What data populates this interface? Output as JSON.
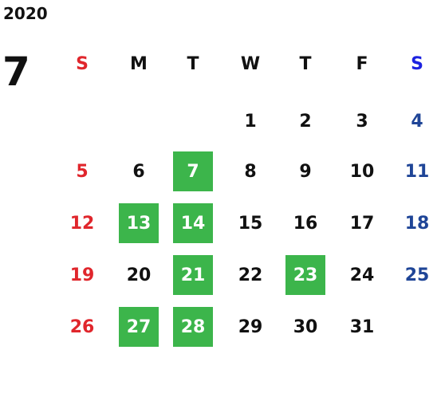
{
  "year": "2020",
  "month": "7",
  "weekdays": [
    "S",
    "M",
    "T",
    "W",
    "T",
    "F",
    "S"
  ],
  "weeks": [
    [
      null,
      null,
      null,
      {
        "day": 1,
        "highlighted": false
      },
      {
        "day": 2,
        "highlighted": false
      },
      {
        "day": 3,
        "highlighted": false
      },
      {
        "day": 4,
        "highlighted": false
      }
    ],
    [
      {
        "day": 5,
        "highlighted": false
      },
      {
        "day": 6,
        "highlighted": false
      },
      {
        "day": 7,
        "highlighted": true
      },
      {
        "day": 8,
        "highlighted": false
      },
      {
        "day": 9,
        "highlighted": false
      },
      {
        "day": 10,
        "highlighted": false
      },
      {
        "day": 11,
        "highlighted": false
      }
    ],
    [
      {
        "day": 12,
        "highlighted": false
      },
      {
        "day": 13,
        "highlighted": true
      },
      {
        "day": 14,
        "highlighted": true
      },
      {
        "day": 15,
        "highlighted": false
      },
      {
        "day": 16,
        "highlighted": false
      },
      {
        "day": 17,
        "highlighted": false
      },
      {
        "day": 18,
        "highlighted": false
      }
    ],
    [
      {
        "day": 19,
        "highlighted": false
      },
      {
        "day": 20,
        "highlighted": false
      },
      {
        "day": 21,
        "highlighted": true
      },
      {
        "day": 22,
        "highlighted": false
      },
      {
        "day": 23,
        "highlighted": true
      },
      {
        "day": 24,
        "highlighted": false
      },
      {
        "day": 25,
        "highlighted": false
      }
    ],
    [
      {
        "day": 26,
        "highlighted": false
      },
      {
        "day": 27,
        "highlighted": true
      },
      {
        "day": 28,
        "highlighted": true
      },
      {
        "day": 29,
        "highlighted": false
      },
      {
        "day": 30,
        "highlighted": false
      },
      {
        "day": 31,
        "highlighted": false
      },
      null
    ]
  ]
}
